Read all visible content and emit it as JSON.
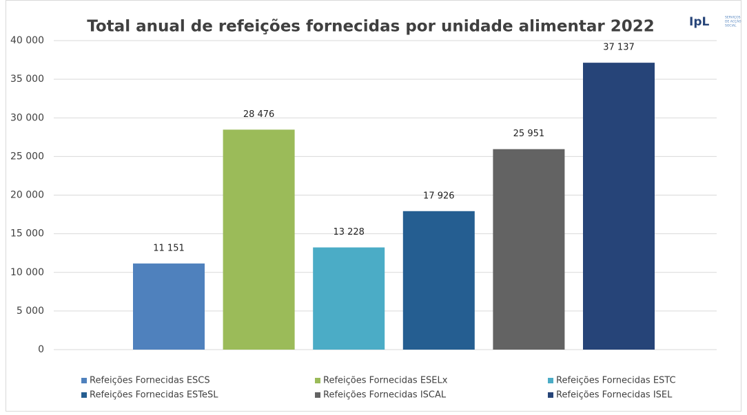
{
  "chart_data": {
    "type": "bar",
    "title": "Total anual de refeições fornecidas por unidade alimentar 2022",
    "logo": {
      "text": "IpL",
      "lines": [
        "SERVIÇOS",
        "DE ACÇÃO",
        "SOCIAL"
      ]
    },
    "series": [
      {
        "name": "Refeições Fornecidas ESCS",
        "color": "#4f81bd",
        "values": [
          11151
        ],
        "value_labels": [
          "11 151"
        ]
      },
      {
        "name": "Refeições Fornecidas ESELx",
        "color": "#9bbb59",
        "values": [
          28476
        ],
        "value_labels": [
          "28 476"
        ]
      },
      {
        "name": "Refeições Fornecidas ESTC",
        "color": "#4bacc6",
        "values": [
          13228
        ],
        "value_labels": [
          "13 228"
        ]
      },
      {
        "name": "Refeições Fornecidas ESTeSL",
        "color": "#255e91",
        "values": [
          17926
        ],
        "value_labels": [
          "17 926"
        ]
      },
      {
        "name": "Refeições Fornecidas ISCAL",
        "color": "#636363",
        "values": [
          25951
        ],
        "value_labels": [
          "25 951"
        ]
      },
      {
        "name": "Refeições Fornecidas ISEL",
        "color": "#264478",
        "values": [
          37137
        ],
        "value_labels": [
          "37 137"
        ]
      }
    ],
    "ylim": [
      0,
      40000
    ],
    "yticks": [
      0,
      {
        "value": 5000,
        "label": "5 000"
      },
      {
        "value": 10000,
        "label": "10 000"
      },
      {
        "value": 15000,
        "label": "15 000"
      },
      {
        "value": 20000,
        "label": "20 000"
      },
      {
        "value": 25000,
        "label": "25 000"
      },
      {
        "value": 30000,
        "label": "30 000"
      },
      {
        "value": 35000,
        "label": "35 000"
      },
      {
        "value": 40000,
        "label": "40 000"
      }
    ],
    "grid": true
  }
}
